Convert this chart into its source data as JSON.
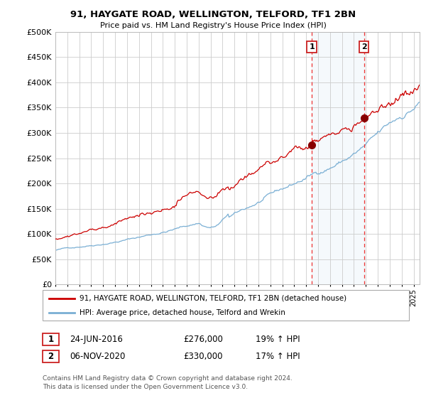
{
  "title": "91, HAYGATE ROAD, WELLINGTON, TELFORD, TF1 2BN",
  "subtitle": "Price paid vs. HM Land Registry's House Price Index (HPI)",
  "legend_line1": "91, HAYGATE ROAD, WELLINGTON, TELFORD, TF1 2BN (detached house)",
  "legend_line2": "HPI: Average price, detached house, Telford and Wrekin",
  "footnote1": "Contains HM Land Registry data © Crown copyright and database right 2024.",
  "footnote2": "This data is licensed under the Open Government Licence v3.0.",
  "table": [
    {
      "num": "1",
      "date": "24-JUN-2016",
      "price": "£276,000",
      "hpi": "19% ↑ HPI"
    },
    {
      "num": "2",
      "date": "06-NOV-2020",
      "price": "£330,000",
      "hpi": "17% ↑ HPI"
    }
  ],
  "transaction1_date": 2016.47,
  "transaction1_price": 276000,
  "transaction2_date": 2020.84,
  "transaction2_price": 330000,
  "red_line_color": "#cc0000",
  "blue_line_color": "#7aafd4",
  "marker_color": "#880000",
  "vline_color": "#ee3333",
  "shade_color": "#d8eaf7",
  "ylim": [
    0,
    500000
  ],
  "yticks": [
    0,
    50000,
    100000,
    150000,
    200000,
    250000,
    300000,
    350000,
    400000,
    450000,
    500000
  ],
  "background_color": "#ffffff",
  "grid_color": "#cccccc",
  "xlim_start": 1995,
  "xlim_end": 2025.5
}
